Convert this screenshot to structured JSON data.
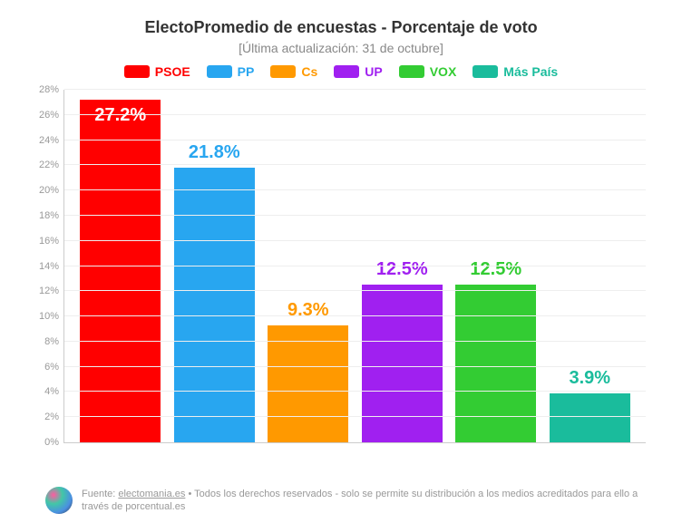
{
  "chart": {
    "type": "bar",
    "title": "ElectoPromedio de encuestas - Porcentaje de voto",
    "title_fontsize": 18,
    "subtitle": "[Última actualización: 31 de octubre]",
    "background_color": "#ffffff",
    "grid_color": "#eeeeee",
    "axis_color": "#cccccc",
    "ylim": [
      0,
      28
    ],
    "ytick_step": 2,
    "yticks": [
      "0%",
      "2%",
      "4%",
      "6%",
      "8%",
      "10%",
      "12%",
      "14%",
      "16%",
      "18%",
      "20%",
      "22%",
      "24%",
      "26%",
      "28%"
    ],
    "bar_width": 0.86,
    "value_fontsize": 20,
    "legend_fontsize": 14,
    "ylabel_fontsize": 11,
    "series": [
      {
        "name": "PSOE",
        "value": 27.2,
        "label": "27.2%",
        "color": "#ff0000",
        "label_color": "#ffffff",
        "label_inside": true
      },
      {
        "name": "PP",
        "value": 21.8,
        "label": "21.8%",
        "color": "#28a6f0",
        "label_color": "#28a6f0",
        "label_inside": false
      },
      {
        "name": "Cs",
        "value": 9.3,
        "label": "9.3%",
        "color": "#ff9900",
        "label_color": "#ff9900",
        "label_inside": false
      },
      {
        "name": "UP",
        "value": 12.5,
        "label": "12.5%",
        "color": "#a020f0",
        "label_color": "#a020f0",
        "label_inside": false
      },
      {
        "name": "VOX",
        "value": 12.5,
        "label": "12.5%",
        "color": "#33cc33",
        "label_color": "#33cc33",
        "label_inside": false
      },
      {
        "name": "Más País",
        "value": 3.9,
        "label": "3.9%",
        "color": "#1abc9c",
        "label_color": "#1abc9c",
        "label_inside": false
      }
    ]
  },
  "footer": {
    "source_label": "Fuente:",
    "source_link": "electomania.es",
    "rights": "• Todos los derechos reservados - solo se permite su distribución a los medios acreditados para ello a través de porcentual.es"
  }
}
